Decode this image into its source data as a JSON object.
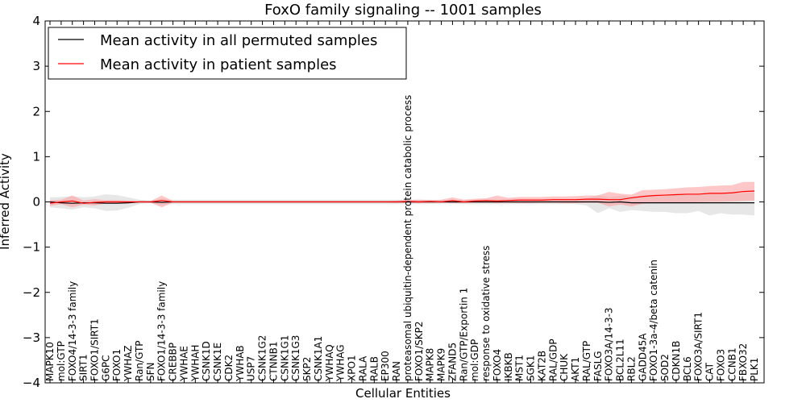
{
  "chart_data": {
    "type": "line",
    "title": "FoxO family signaling -- 1001 samples",
    "xlabel": "Cellular Entities",
    "ylabel": "Inferred Activity",
    "ylim": [
      -4,
      4
    ],
    "yticks": [
      -4,
      -3,
      -2,
      -1,
      0,
      1,
      2,
      3,
      4
    ],
    "ytick_labels": [
      "−4",
      "−3",
      "−2",
      "−1",
      "0",
      "1",
      "2",
      "3",
      "4"
    ],
    "grid": false,
    "legend_position": "top-left",
    "categories": [
      "MAPK10",
      "mol:GTP",
      "FOXO4/14-3-3 family",
      "SIRT1",
      "FOXO1/SIRT1",
      "G6PC",
      "FOXO1",
      "YWHAZ",
      "Ran/GTP",
      "SFN",
      "FOXO1/14-3-3 family",
      "CREBBP",
      "YWHAE",
      "YWHAH",
      "CSNK1D",
      "CSNK1E",
      "CDK2",
      "YWHAB",
      "USP7",
      "CSNK1G2",
      "CTNNB1",
      "CSNK1G1",
      "CSNK1G3",
      "SKP2",
      "CSNK1A1",
      "YWHAQ",
      "YWHAG",
      "XPO1",
      "RALA",
      "RALB",
      "EP300",
      "RAN",
      "proteasomal ubiquitin-dependent protein catabolic process",
      "FOXO1/SKP2",
      "MAPK8",
      "MAPK9",
      "ZFAND5",
      "Ran/GTP/Exportin 1",
      "mol:GDP",
      "response to oxidative stress",
      "FOXO4",
      "IKBKB",
      "MST1",
      "SGK1",
      "KAT2B",
      "RAL/GDP",
      "CHUK",
      "AKT1",
      "RAL/GTP",
      "FASLG",
      "FOXO3A/14-3-3",
      "BCL2L11",
      "RBL2",
      "GADD45A",
      "FOXO1-3a-4/beta catenin",
      "SOD2",
      "CDKN1B",
      "BCL6",
      "FOXO3A/SIRT1",
      "CAT",
      "FOXO3",
      "CCNB1",
      "FBXO32",
      "PLK1"
    ],
    "series": [
      {
        "name": "Mean activity in all permuted samples",
        "color": "#000000",
        "band_color": "#bbbbbb",
        "values": [
          0.0,
          -0.02,
          -0.03,
          -0.02,
          -0.02,
          -0.03,
          -0.03,
          -0.02,
          0.0,
          0.0,
          -0.01,
          0.0,
          0.0,
          0.0,
          0.0,
          0.0,
          0.0,
          0.0,
          0.0,
          0.0,
          0.0,
          0.0,
          0.0,
          0.0,
          0.0,
          0.0,
          0.0,
          0.0,
          0.0,
          0.0,
          0.0,
          0.0,
          0.0,
          0.0,
          0.0,
          0.0,
          0.0,
          0.0,
          0.0,
          0.0,
          0.0,
          0.0,
          0.0,
          0.0,
          0.0,
          0.0,
          0.0,
          0.0,
          0.0,
          0.0,
          -0.01,
          0.0,
          -0.02,
          -0.02,
          -0.02,
          -0.02,
          -0.02,
          -0.02,
          -0.02,
          -0.02,
          -0.02,
          -0.02,
          -0.02,
          -0.02
        ],
        "lower": [
          -0.12,
          -0.14,
          -0.17,
          -0.12,
          -0.14,
          -0.2,
          -0.19,
          -0.13,
          -0.05,
          -0.03,
          -0.07,
          -0.05,
          -0.05,
          -0.05,
          -0.05,
          -0.05,
          -0.05,
          -0.05,
          -0.05,
          -0.05,
          -0.05,
          -0.05,
          -0.05,
          -0.05,
          -0.05,
          -0.05,
          -0.05,
          -0.05,
          -0.05,
          -0.05,
          -0.05,
          -0.05,
          -0.05,
          -0.05,
          -0.05,
          -0.04,
          -0.04,
          -0.05,
          -0.05,
          -0.05,
          -0.05,
          -0.05,
          -0.05,
          -0.05,
          -0.05,
          -0.05,
          -0.05,
          -0.05,
          -0.08,
          -0.25,
          -0.14,
          -0.22,
          -0.18,
          -0.2,
          -0.22,
          -0.22,
          -0.25,
          -0.25,
          -0.2,
          -0.3,
          -0.25,
          -0.28,
          -0.28,
          -0.3
        ],
        "upper": [
          0.1,
          0.11,
          0.13,
          0.1,
          0.12,
          0.17,
          0.15,
          0.1,
          0.05,
          0.03,
          0.07,
          0.05,
          0.05,
          0.05,
          0.05,
          0.05,
          0.05,
          0.05,
          0.05,
          0.05,
          0.05,
          0.05,
          0.05,
          0.05,
          0.05,
          0.05,
          0.05,
          0.05,
          0.05,
          0.05,
          0.05,
          0.05,
          0.05,
          0.05,
          0.05,
          0.04,
          0.04,
          0.05,
          0.05,
          0.05,
          0.05,
          0.05,
          0.05,
          0.05,
          0.05,
          0.05,
          0.05,
          0.05,
          0.08,
          0.15,
          0.1,
          0.14,
          0.12,
          0.14,
          0.15,
          0.15,
          0.18,
          0.18,
          0.15,
          0.2,
          0.18,
          0.2,
          0.2,
          0.2
        ]
      },
      {
        "name": "Mean activity in patient samples",
        "color": "#ff0000",
        "band_color": "#ff9999",
        "values": [
          -0.03,
          0.0,
          0.02,
          -0.03,
          -0.01,
          0.0,
          0.0,
          0.0,
          0.0,
          0.0,
          0.03,
          0.0,
          0.0,
          0.0,
          0.0,
          0.0,
          0.0,
          0.0,
          0.0,
          0.0,
          0.0,
          0.0,
          0.0,
          0.0,
          0.0,
          0.0,
          0.0,
          0.0,
          0.0,
          0.0,
          0.0,
          0.0,
          0.01,
          0.0,
          0.01,
          0.0,
          0.03,
          0.0,
          0.02,
          0.03,
          0.02,
          0.03,
          0.04,
          0.04,
          0.04,
          0.05,
          0.05,
          0.05,
          0.06,
          0.06,
          0.05,
          0.05,
          0.09,
          0.12,
          0.14,
          0.15,
          0.16,
          0.17,
          0.17,
          0.19,
          0.19,
          0.2,
          0.23,
          0.24
        ],
        "lower": [
          -0.09,
          -0.05,
          -0.12,
          -0.06,
          -0.08,
          -0.03,
          -0.03,
          -0.02,
          -0.01,
          -0.02,
          -0.12,
          -0.01,
          -0.01,
          -0.01,
          -0.01,
          -0.01,
          -0.01,
          -0.01,
          -0.01,
          -0.01,
          -0.01,
          -0.01,
          -0.01,
          -0.01,
          -0.01,
          -0.01,
          -0.01,
          -0.01,
          -0.01,
          -0.01,
          -0.01,
          -0.02,
          -0.02,
          -0.03,
          -0.02,
          -0.02,
          -0.03,
          -0.03,
          -0.02,
          -0.02,
          -0.03,
          -0.02,
          -0.03,
          -0.03,
          -0.02,
          -0.02,
          -0.03,
          -0.03,
          -0.02,
          -0.02,
          -0.1,
          -0.06,
          -0.1,
          -0.04,
          -0.03,
          -0.02,
          -0.01,
          -0.01,
          -0.01,
          0.0,
          0.0,
          0.01,
          0.02,
          0.03
        ],
        "upper": [
          0.04,
          0.05,
          0.14,
          0.03,
          0.06,
          0.04,
          0.04,
          0.03,
          0.02,
          0.02,
          0.14,
          0.02,
          0.02,
          0.02,
          0.02,
          0.02,
          0.02,
          0.02,
          0.02,
          0.02,
          0.02,
          0.02,
          0.02,
          0.02,
          0.02,
          0.02,
          0.02,
          0.02,
          0.02,
          0.02,
          0.02,
          0.03,
          0.04,
          0.05,
          0.04,
          0.05,
          0.1,
          0.05,
          0.07,
          0.08,
          0.14,
          0.09,
          0.11,
          0.11,
          0.11,
          0.12,
          0.12,
          0.13,
          0.14,
          0.14,
          0.22,
          0.18,
          0.16,
          0.26,
          0.27,
          0.28,
          0.3,
          0.32,
          0.33,
          0.35,
          0.36,
          0.37,
          0.44,
          0.44
        ]
      }
    ]
  }
}
